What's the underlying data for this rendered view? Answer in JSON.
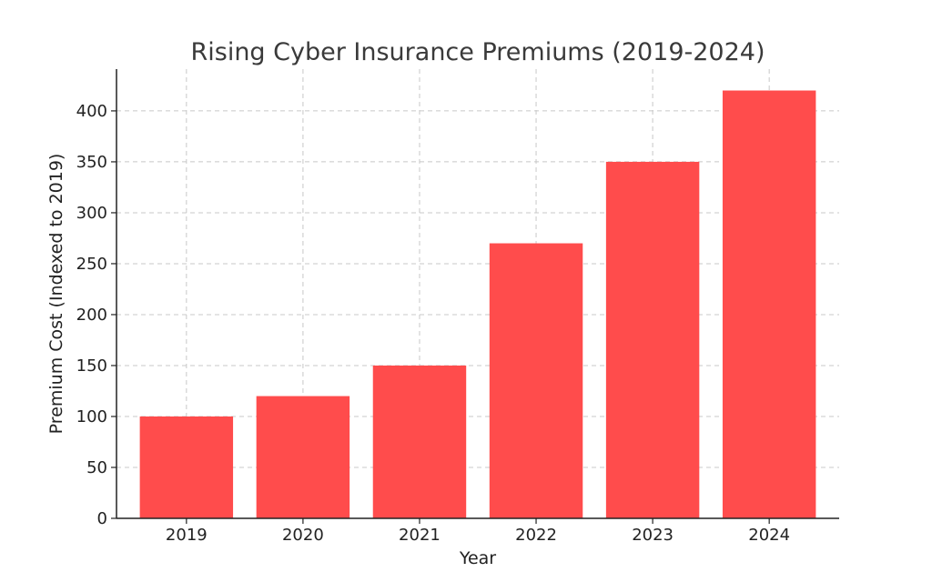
{
  "chart_data": {
    "type": "bar",
    "title": "Rising Cyber Insurance Premiums (2019-2024)",
    "xlabel": "Year",
    "ylabel": "Premium Cost (Indexed to 2019)",
    "categories": [
      "2019",
      "2020",
      "2021",
      "2022",
      "2023",
      "2024"
    ],
    "values": [
      100,
      120,
      150,
      270,
      350,
      420
    ],
    "ylim": [
      0,
      441
    ],
    "yticks": [
      0,
      50,
      100,
      150,
      200,
      250,
      300,
      350,
      400
    ],
    "grid": true,
    "bar_color": "#ff4c4c",
    "legend": "none"
  }
}
